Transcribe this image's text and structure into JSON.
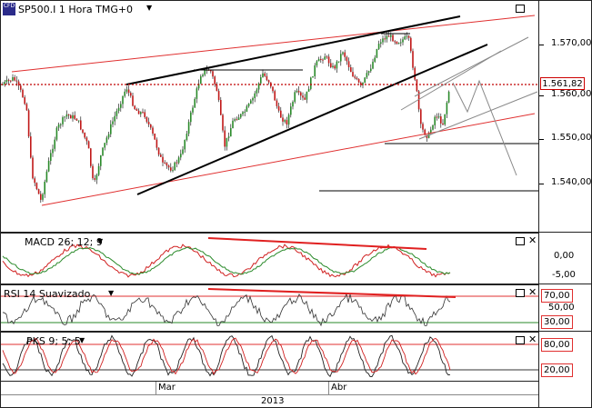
{
  "main": {
    "title": "SP500.I 1 Hora TMG+0",
    "last_price": "1.561,82",
    "price_ticks": [
      "1.570,00",
      "1.560,00",
      "1.550,00",
      "1.540,00"
    ]
  },
  "macd": {
    "title": "MACD 26; 12; 9",
    "ticks": [
      "0,00",
      "-5,00"
    ]
  },
  "rsi": {
    "title": "RSI 14 Suavizado",
    "ticks": [
      "70,00",
      "50,00",
      "30,00"
    ]
  },
  "pks": {
    "title": "PKS 9; 5; 5",
    "ticks": [
      "80,00",
      "20,00"
    ]
  },
  "time_axis": {
    "months": [
      "Mar",
      "Abr"
    ],
    "year": "2013"
  },
  "colors": {
    "price_up": "#2a8a2a",
    "price_down": "#c01818",
    "trend_red": "#e03030",
    "trend_black": "#000000",
    "level": "#c00000"
  }
}
